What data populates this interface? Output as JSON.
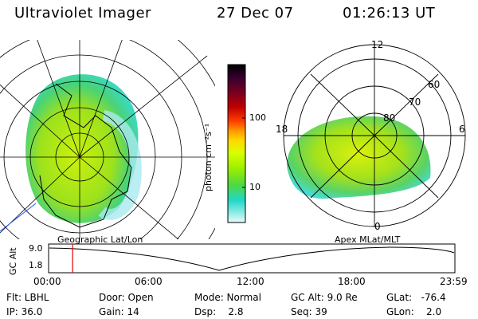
{
  "header": {
    "instrument": "Ultraviolet Imager",
    "date": "27 Dec 07",
    "time": "01:26:13 UT"
  },
  "left_panel": {
    "label": "Geographic Lat/Lon"
  },
  "right_panel": {
    "label": "Apex MLat/MLT",
    "mlt_labels": [
      "12",
      "18",
      "6",
      "0"
    ],
    "mlat_labels": [
      "60",
      "70",
      "80"
    ]
  },
  "colorbar": {
    "unit_label": "photon cm⁻²s⁻¹",
    "ticks": [
      "100",
      "10"
    ],
    "colors": [
      "#000000",
      "#3a0030",
      "#7a0020",
      "#c00000",
      "#ff4000",
      "#ff9a00",
      "#ffd800",
      "#d8ff00",
      "#9aee00",
      "#50d840",
      "#20d8c8",
      "#d0f4f4"
    ]
  },
  "timeline": {
    "ylabel": "GC Alt",
    "y_ticks": [
      "9.0",
      "1.8"
    ],
    "x_ticks": [
      "00:00",
      "06:00",
      "12:00",
      "18:00",
      "23:59"
    ],
    "marker_time_fraction": 0.059,
    "marker_color": "#dd0000"
  },
  "footer": {
    "flt": "Flt: LBHL",
    "ip": "IP: 36.0",
    "door": "Door: Open",
    "gain": "Gain: 14",
    "mode": "Mode: Normal",
    "dsp": "Dsp:    2.8",
    "gc_alt": "GC Alt: 9.0 Re",
    "seq": "Seq: 39",
    "glat": "GLat:   -76.4",
    "glon": "GLon:    2.0"
  }
}
